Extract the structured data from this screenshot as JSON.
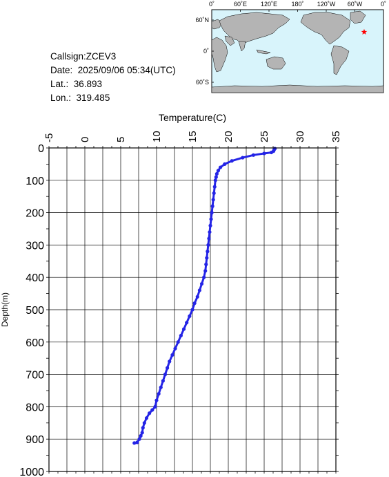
{
  "info": {
    "callsign": "Callsign:ZCEV3",
    "date": "Date:  2025/09/06 05:34(UTC)",
    "lat": "Lat.:  36.893",
    "lon": "Lon.:  319.485"
  },
  "map": {
    "lon_labels": [
      "0˚",
      "60˚E",
      "120˚E",
      "180˚",
      "120˚W",
      "60˚W",
      "0˚"
    ],
    "lat_labels": [
      "60˚N",
      "0˚",
      "60˚S"
    ],
    "station": {
      "lat": 36.893,
      "lon": 319.485
    },
    "colors": {
      "ocean": "#d8f4fb",
      "land": "#b4b4b4",
      "marker": "#ff0000"
    }
  },
  "chart_data": {
    "type": "line",
    "xlabel": "Temperature(C)",
    "ylabel": "Depth(m)",
    "xlim": [
      -5,
      35
    ],
    "ylim": [
      0,
      1000
    ],
    "x_ticks": [
      "-5",
      "0",
      "5",
      "10",
      "15",
      "20",
      "25",
      "30",
      "35"
    ],
    "y_ticks": [
      "0",
      "100",
      "200",
      "300",
      "400",
      "500",
      "600",
      "700",
      "800",
      "900",
      "1000"
    ],
    "grid": true,
    "series": [
      {
        "color": "#2424e6",
        "points": [
          [
            26.5,
            2
          ],
          [
            26.4,
            5
          ],
          [
            26.3,
            10
          ],
          [
            26.0,
            14
          ],
          [
            25.0,
            17
          ],
          [
            23.5,
            22
          ],
          [
            22.0,
            30
          ],
          [
            20.5,
            40
          ],
          [
            19.5,
            50
          ],
          [
            18.9,
            60
          ],
          [
            18.6,
            70
          ],
          [
            18.4,
            80
          ],
          [
            18.3,
            90
          ],
          [
            18.2,
            100
          ],
          [
            18.1,
            120
          ],
          [
            18.0,
            140
          ],
          [
            17.9,
            160
          ],
          [
            17.8,
            180
          ],
          [
            17.7,
            200
          ],
          [
            17.6,
            220
          ],
          [
            17.5,
            240
          ],
          [
            17.4,
            260
          ],
          [
            17.3,
            280
          ],
          [
            17.2,
            300
          ],
          [
            17.1,
            320
          ],
          [
            17.0,
            340
          ],
          [
            16.9,
            360
          ],
          [
            16.8,
            380
          ],
          [
            16.6,
            400
          ],
          [
            16.3,
            420
          ],
          [
            16.0,
            440
          ],
          [
            15.7,
            460
          ],
          [
            15.3,
            480
          ],
          [
            15.0,
            500
          ],
          [
            14.6,
            520
          ],
          [
            14.2,
            540
          ],
          [
            13.8,
            560
          ],
          [
            13.4,
            580
          ],
          [
            13.0,
            600
          ],
          [
            12.6,
            620
          ],
          [
            12.2,
            640
          ],
          [
            11.8,
            660
          ],
          [
            11.5,
            680
          ],
          [
            11.2,
            700
          ],
          [
            10.9,
            720
          ],
          [
            10.6,
            740
          ],
          [
            10.3,
            760
          ],
          [
            10.0,
            780
          ],
          [
            9.8,
            800
          ],
          [
            9.4,
            810
          ],
          [
            9.0,
            820
          ],
          [
            8.6,
            835
          ],
          [
            8.3,
            850
          ],
          [
            8.1,
            865
          ],
          [
            8.0,
            880
          ],
          [
            7.8,
            890
          ],
          [
            7.6,
            900
          ],
          [
            7.3,
            910
          ],
          [
            6.9,
            912
          ]
        ]
      }
    ]
  }
}
